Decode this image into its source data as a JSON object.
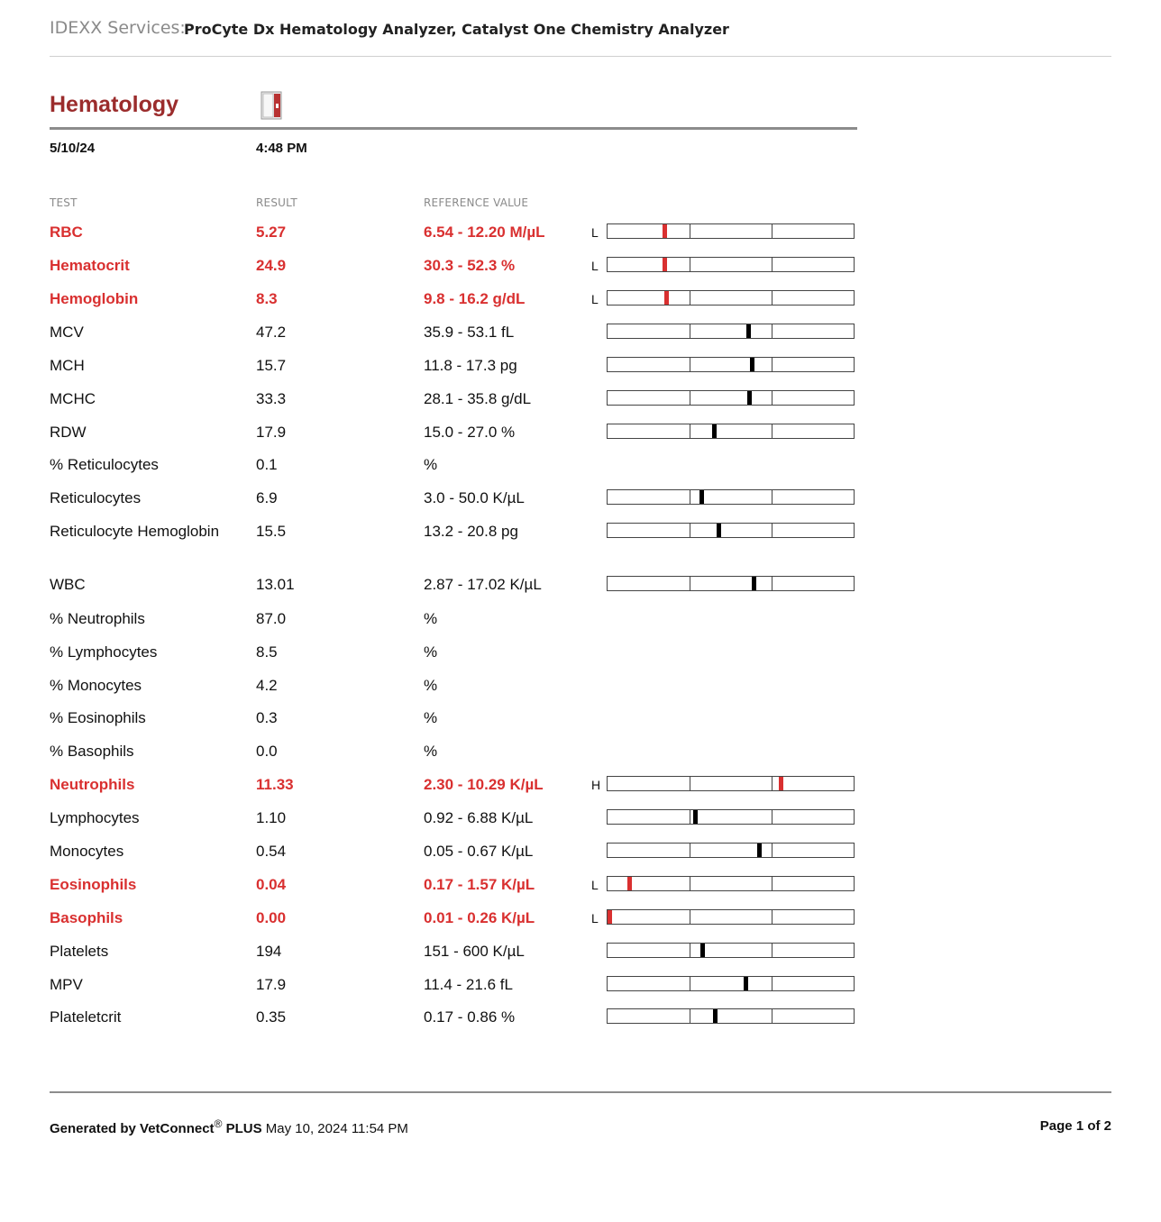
{
  "header": {
    "services_label": "IDEXX Services:",
    "analyzers": "ProCyte Dx Hematology Analyzer, Catalyst One Chemistry Analyzer"
  },
  "section": {
    "title": "Hematology",
    "date": "5/10/24",
    "time": "4:48 PM",
    "instrument_icon": "procyte-analyzer-icon"
  },
  "columns": {
    "test": "TEST",
    "result": "RESULT",
    "reference": "REFERENCE VALUE"
  },
  "colors": {
    "abnormal": "#d93030",
    "title": "#9b2c2c"
  },
  "rows": [
    {
      "name": "RBC",
      "result": "5.27",
      "ref": "6.54 - 12.20 M/µL",
      "flag": "L",
      "abnormal": true,
      "gauge": 0.22
    },
    {
      "name": "Hematocrit",
      "result": "24.9",
      "ref": "30.3 - 52.3 %",
      "flag": "L",
      "abnormal": true,
      "gauge": 0.22
    },
    {
      "name": "Hemoglobin",
      "result": "8.3",
      "ref": "9.8 - 16.2 g/dL",
      "flag": "L",
      "abnormal": true,
      "gauge": 0.23
    },
    {
      "name": "MCV",
      "result": "47.2",
      "ref": "35.9 - 53.1 fL",
      "flag": "",
      "abnormal": false,
      "gauge": 0.56
    },
    {
      "name": "MCH",
      "result": "15.7",
      "ref": "11.8 - 17.3 pg",
      "flag": "",
      "abnormal": false,
      "gauge": 0.575
    },
    {
      "name": "MCHC",
      "result": "33.3",
      "ref": "28.1 - 35.8 g/dL",
      "flag": "",
      "abnormal": false,
      "gauge": 0.565
    },
    {
      "name": "RDW",
      "result": "17.9",
      "ref": "15.0 - 27.0 %",
      "flag": "",
      "abnormal": false,
      "gauge": 0.42
    },
    {
      "name": "% Reticulocytes",
      "result": "0.1",
      "ref": "%",
      "flag": "",
      "abnormal": false,
      "gauge": null
    },
    {
      "name": "Reticulocytes",
      "result": "6.9",
      "ref": "3.0 - 50.0 K/µL",
      "flag": "",
      "abnormal": false,
      "gauge": 0.37
    },
    {
      "name": "Reticulocyte Hemoglobin",
      "result": "15.5",
      "ref": "13.2 - 20.8 pg",
      "flag": "",
      "abnormal": false,
      "gauge": 0.44
    },
    {
      "name": "WBC",
      "result": "13.01",
      "ref": "2.87 - 17.02 K/µL",
      "flag": "",
      "abnormal": false,
      "gauge": 0.58
    },
    {
      "name": "% Neutrophils",
      "result": "87.0",
      "ref": "%",
      "flag": "",
      "abnormal": false,
      "gauge": null
    },
    {
      "name": "% Lymphocytes",
      "result": "8.5",
      "ref": "%",
      "flag": "",
      "abnormal": false,
      "gauge": null
    },
    {
      "name": "% Monocytes",
      "result": "4.2",
      "ref": "%",
      "flag": "",
      "abnormal": false,
      "gauge": null
    },
    {
      "name": "% Eosinophils",
      "result": "0.3",
      "ref": "%",
      "flag": "",
      "abnormal": false,
      "gauge": null
    },
    {
      "name": "% Basophils",
      "result": "0.0",
      "ref": "%",
      "flag": "",
      "abnormal": false,
      "gauge": null
    },
    {
      "name": "Neutrophils",
      "result": "11.33",
      "ref": "2.30 - 10.29 K/µL",
      "flag": "H",
      "abnormal": true,
      "gauge": 0.69
    },
    {
      "name": "Lymphocytes",
      "result": "1.10",
      "ref": "0.92 - 6.88 K/µL",
      "flag": "",
      "abnormal": false,
      "gauge": 0.345
    },
    {
      "name": "Monocytes",
      "result": "0.54",
      "ref": "0.05 - 0.67 K/µL",
      "flag": "",
      "abnormal": false,
      "gauge": 0.605
    },
    {
      "name": "Eosinophils",
      "result": "0.04",
      "ref": "0.17 - 1.57 K/µL",
      "flag": "L",
      "abnormal": true,
      "gauge": 0.08
    },
    {
      "name": "Basophils",
      "result": "0.00",
      "ref": "0.01 - 0.26 K/µL",
      "flag": "L",
      "abnormal": true,
      "gauge": 0.0
    },
    {
      "name": "Platelets",
      "result": "194",
      "ref": "151 - 600 K/µL",
      "flag": "",
      "abnormal": false,
      "gauge": 0.375
    },
    {
      "name": "MPV",
      "result": "17.9",
      "ref": "11.4 - 21.6 fL",
      "flag": "",
      "abnormal": false,
      "gauge": 0.55
    },
    {
      "name": "Plateletcrit",
      "result": "0.35",
      "ref": "0.17 - 0.86 %",
      "flag": "",
      "abnormal": false,
      "gauge": 0.425
    }
  ],
  "footer": {
    "generated_by": "Generated by VetConnect",
    "registered": "®",
    "plus": "PLUS",
    "timestamp": "May 10, 2024 11:54 PM",
    "page": "Page 1 of 2"
  }
}
